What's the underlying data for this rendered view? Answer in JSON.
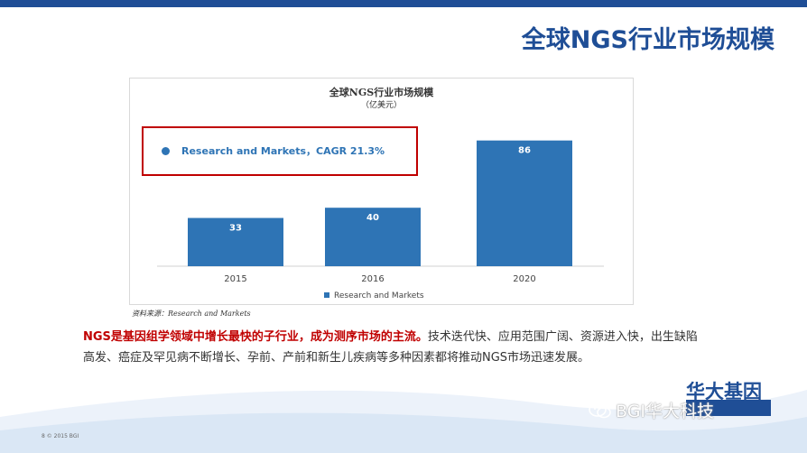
{
  "slide": {
    "title": "全球NGS行业市场规模",
    "source": "资料来源：Research and Markets",
    "footer": "8   © 2015 BGI"
  },
  "callout": {
    "text": "Research and Markets，CAGR 21.3%"
  },
  "body": {
    "highlight": "NGS是基因组学领域中增长最快的子行业，成为测序市场的主流。",
    "rest": "技术迭代快、应用范围广阔、资源进入快，出生缺陷高发、癌症及罕见病不断增长、孕前、产前和新生儿疾病等多种因素都将推动NGS市场迅速发展。"
  },
  "brand": {
    "logo_cn": "华大基因",
    "watermark": "BGI华大科技"
  },
  "icons": {
    "watermark_icon": "wechat-icon"
  },
  "colors": {
    "brand_blue": "#1f4e96",
    "bar_blue": "#2e74b5",
    "highlight_red": "#c00000"
  },
  "chart_data": {
    "type": "bar",
    "title": "全球NGS行业市场规模",
    "subtitle": "（亿美元）",
    "categories": [
      "2015",
      "2016",
      "2020"
    ],
    "series": [
      {
        "name": "Research and Markets",
        "values": [
          33,
          40,
          86
        ]
      }
    ],
    "ylim": [
      0,
      100
    ],
    "grid": false,
    "legend": "bottom"
  }
}
